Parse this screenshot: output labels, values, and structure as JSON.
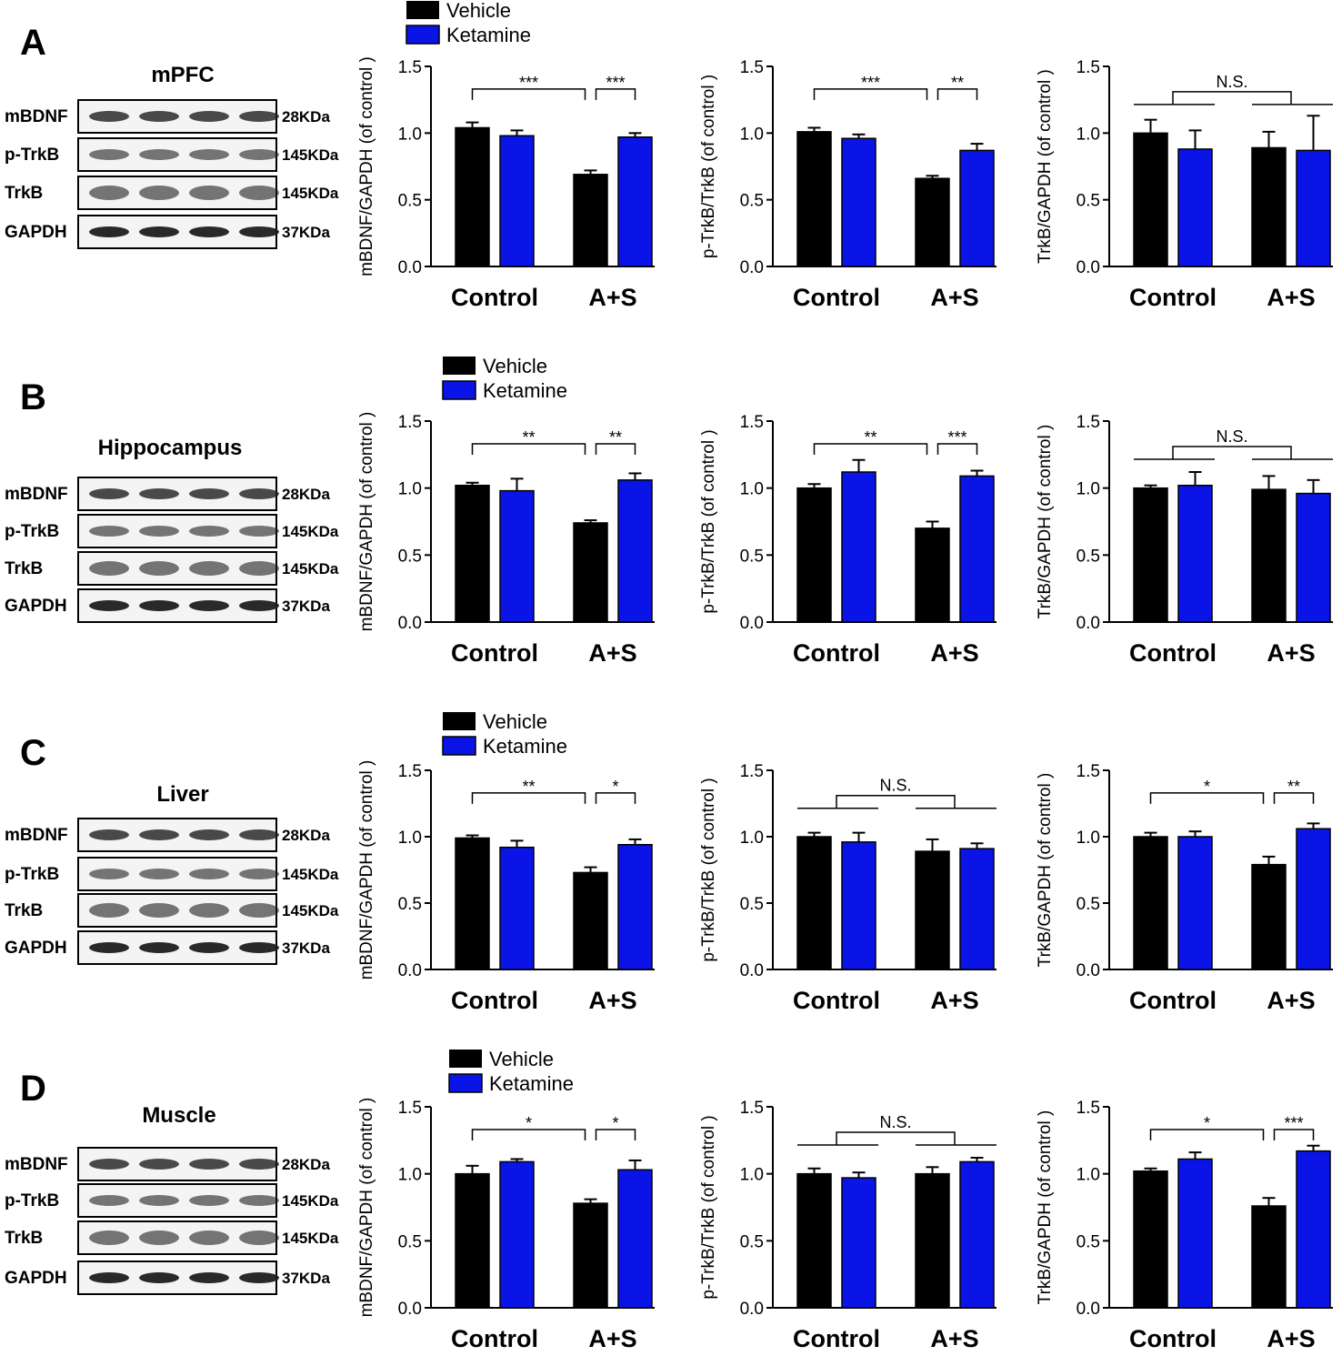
{
  "colors": {
    "vehicle": "#000000",
    "ketamine": "#0a14e6",
    "band": "#1e1e1e"
  },
  "legend": {
    "vehicle": "Vehicle",
    "ketamine": "Ketamine"
  },
  "blot": {
    "bands": [
      "mBDNF",
      "p-TrkB",
      "TrkB",
      "GAPDH"
    ],
    "kda": [
      "28KDa",
      "145KDa",
      "145KDa",
      "37KDa"
    ]
  },
  "panels": [
    {
      "letter": "A",
      "tissue": "mPFC"
    },
    {
      "letter": "B",
      "tissue": "Hippocampus"
    },
    {
      "letter": "C",
      "tissue": "Liver"
    },
    {
      "letter": "D",
      "tissue": "Muscle"
    }
  ],
  "chart_data": [
    {
      "type": "bar",
      "panel": "A",
      "ylabel": "mBDNF/GAPDH (of control )",
      "categories": [
        "Control",
        "A+S"
      ],
      "ylim": [
        0,
        1.5
      ],
      "yticks": [
        "0.0",
        "0.5",
        "1.0",
        "1.5"
      ],
      "series": [
        {
          "name": "Vehicle",
          "values": [
            1.04,
            0.69
          ],
          "errors": [
            0.04,
            0.03
          ]
        },
        {
          "name": "Ketamine",
          "values": [
            0.98,
            0.97
          ],
          "errors": [
            0.04,
            0.03
          ]
        }
      ],
      "significance": [
        {
          "label": "***",
          "from": "Control/Vehicle",
          "to": "A+S/Vehicle"
        },
        {
          "label": "***",
          "from": "A+S/Vehicle",
          "to": "A+S/Ketamine"
        }
      ]
    },
    {
      "type": "bar",
      "panel": "A",
      "ylabel": "p-TrkB/TrkB (of control )",
      "categories": [
        "Control",
        "A+S"
      ],
      "ylim": [
        0,
        1.5
      ],
      "yticks": [
        "0.0",
        "0.5",
        "1.0",
        "1.5"
      ],
      "series": [
        {
          "name": "Vehicle",
          "values": [
            1.01,
            0.66
          ],
          "errors": [
            0.03,
            0.02
          ]
        },
        {
          "name": "Ketamine",
          "values": [
            0.96,
            0.87
          ],
          "errors": [
            0.03,
            0.05
          ]
        }
      ],
      "significance": [
        {
          "label": "***",
          "from": "Control/Vehicle",
          "to": "A+S/Vehicle"
        },
        {
          "label": "**",
          "from": "A+S/Vehicle",
          "to": "A+S/Ketamine"
        }
      ]
    },
    {
      "type": "bar",
      "panel": "A",
      "ylabel": "TrkB/GAPDH (of control )",
      "categories": [
        "Control",
        "A+S"
      ],
      "ylim": [
        0,
        1.5
      ],
      "yticks": [
        "0.0",
        "0.5",
        "1.0",
        "1.5"
      ],
      "series": [
        {
          "name": "Vehicle",
          "values": [
            1.0,
            0.89
          ],
          "errors": [
            0.1,
            0.12
          ]
        },
        {
          "name": "Ketamine",
          "values": [
            0.88,
            0.87
          ],
          "errors": [
            0.14,
            0.26
          ]
        }
      ],
      "significance": [
        {
          "label": "N.S.",
          "type": "group",
          "from": "Control",
          "to": "A+S"
        }
      ]
    },
    {
      "type": "bar",
      "panel": "B",
      "ylabel": "mBDNF/GAPDH (of control )",
      "categories": [
        "Control",
        "A+S"
      ],
      "ylim": [
        0,
        1.5
      ],
      "yticks": [
        "0.0",
        "0.5",
        "1.0",
        "1.5"
      ],
      "series": [
        {
          "name": "Vehicle",
          "values": [
            1.02,
            0.74
          ],
          "errors": [
            0.02,
            0.02
          ]
        },
        {
          "name": "Ketamine",
          "values": [
            0.98,
            1.06
          ],
          "errors": [
            0.09,
            0.05
          ]
        }
      ],
      "significance": [
        {
          "label": "**",
          "from": "Control/Vehicle",
          "to": "A+S/Vehicle"
        },
        {
          "label": "**",
          "from": "A+S/Vehicle",
          "to": "A+S/Ketamine"
        }
      ]
    },
    {
      "type": "bar",
      "panel": "B",
      "ylabel": "p-TrkB/TrkB (of control )",
      "categories": [
        "Control",
        "A+S"
      ],
      "ylim": [
        0,
        1.5
      ],
      "yticks": [
        "0.0",
        "0.5",
        "1.0",
        "1.5"
      ],
      "series": [
        {
          "name": "Vehicle",
          "values": [
            1.0,
            0.7
          ],
          "errors": [
            0.03,
            0.05
          ]
        },
        {
          "name": "Ketamine",
          "values": [
            1.12,
            1.09
          ],
          "errors": [
            0.09,
            0.04
          ]
        }
      ],
      "significance": [
        {
          "label": "**",
          "from": "Control/Vehicle",
          "to": "A+S/Vehicle"
        },
        {
          "label": "***",
          "from": "A+S/Vehicle",
          "to": "A+S/Ketamine"
        }
      ]
    },
    {
      "type": "bar",
      "panel": "B",
      "ylabel": "TrkB/GAPDH (of control )",
      "categories": [
        "Control",
        "A+S"
      ],
      "ylim": [
        0,
        1.5
      ],
      "yticks": [
        "0.0",
        "0.5",
        "1.0",
        "1.5"
      ],
      "series": [
        {
          "name": "Vehicle",
          "values": [
            1.0,
            0.99
          ],
          "errors": [
            0.02,
            0.1
          ]
        },
        {
          "name": "Ketamine",
          "values": [
            1.02,
            0.96
          ],
          "errors": [
            0.1,
            0.1
          ]
        }
      ],
      "significance": [
        {
          "label": "N.S.",
          "type": "group",
          "from": "Control",
          "to": "A+S"
        }
      ]
    },
    {
      "type": "bar",
      "panel": "C",
      "ylabel": "mBDNF/GAPDH (of control )",
      "categories": [
        "Control",
        "A+S"
      ],
      "ylim": [
        0,
        1.5
      ],
      "yticks": [
        "0.0",
        "0.5",
        "1.0",
        "1.5"
      ],
      "series": [
        {
          "name": "Vehicle",
          "values": [
            0.99,
            0.73
          ],
          "errors": [
            0.02,
            0.04
          ]
        },
        {
          "name": "Ketamine",
          "values": [
            0.92,
            0.94
          ],
          "errors": [
            0.05,
            0.04
          ]
        }
      ],
      "significance": [
        {
          "label": "**",
          "from": "Control/Vehicle",
          "to": "A+S/Vehicle"
        },
        {
          "label": "*",
          "from": "A+S/Vehicle",
          "to": "A+S/Ketamine"
        }
      ]
    },
    {
      "type": "bar",
      "panel": "C",
      "ylabel": "p-TrkB/TrkB (of control )",
      "categories": [
        "Control",
        "A+S"
      ],
      "ylim": [
        0,
        1.5
      ],
      "yticks": [
        "0.0",
        "0.5",
        "1.0",
        "1.5"
      ],
      "series": [
        {
          "name": "Vehicle",
          "values": [
            1.0,
            0.89
          ],
          "errors": [
            0.03,
            0.09
          ]
        },
        {
          "name": "Ketamine",
          "values": [
            0.96,
            0.91
          ],
          "errors": [
            0.07,
            0.04
          ]
        }
      ],
      "significance": [
        {
          "label": "N.S.",
          "type": "group",
          "from": "Control",
          "to": "A+S"
        }
      ]
    },
    {
      "type": "bar",
      "panel": "C",
      "ylabel": "TrkB/GAPDH (of control )",
      "categories": [
        "Control",
        "A+S"
      ],
      "ylim": [
        0,
        1.5
      ],
      "yticks": [
        "0.0",
        "0.5",
        "1.0",
        "1.5"
      ],
      "series": [
        {
          "name": "Vehicle",
          "values": [
            1.0,
            0.79
          ],
          "errors": [
            0.03,
            0.06
          ]
        },
        {
          "name": "Ketamine",
          "values": [
            1.0,
            1.06
          ],
          "errors": [
            0.04,
            0.04
          ]
        }
      ],
      "significance": [
        {
          "label": "*",
          "from": "Control/Vehicle",
          "to": "A+S/Vehicle"
        },
        {
          "label": "**",
          "from": "A+S/Vehicle",
          "to": "A+S/Ketamine"
        }
      ]
    },
    {
      "type": "bar",
      "panel": "D",
      "ylabel": "mBDNF/GAPDH (of control )",
      "categories": [
        "Control",
        "A+S"
      ],
      "ylim": [
        0,
        1.5
      ],
      "yticks": [
        "0.0",
        "0.5",
        "1.0",
        "1.5"
      ],
      "series": [
        {
          "name": "Vehicle",
          "values": [
            1.0,
            0.78
          ],
          "errors": [
            0.06,
            0.03
          ]
        },
        {
          "name": "Ketamine",
          "values": [
            1.09,
            1.03
          ],
          "errors": [
            0.02,
            0.07
          ]
        }
      ],
      "significance": [
        {
          "label": "*",
          "from": "Control/Vehicle",
          "to": "A+S/Vehicle"
        },
        {
          "label": "*",
          "from": "A+S/Vehicle",
          "to": "A+S/Ketamine"
        }
      ]
    },
    {
      "type": "bar",
      "panel": "D",
      "ylabel": "p-TrkB/TrkB (of control )",
      "categories": [
        "Control",
        "A+S"
      ],
      "ylim": [
        0,
        1.5
      ],
      "yticks": [
        "0.0",
        "0.5",
        "1.0",
        "1.5"
      ],
      "series": [
        {
          "name": "Vehicle",
          "values": [
            1.0,
            1.0
          ],
          "errors": [
            0.04,
            0.05
          ]
        },
        {
          "name": "Ketamine",
          "values": [
            0.97,
            1.09
          ],
          "errors": [
            0.04,
            0.03
          ]
        }
      ],
      "significance": [
        {
          "label": "N.S.",
          "type": "group",
          "from": "Control",
          "to": "A+S"
        }
      ]
    },
    {
      "type": "bar",
      "panel": "D",
      "ylabel": "TrkB/GAPDH (of control )",
      "categories": [
        "Control",
        "A+S"
      ],
      "ylim": [
        0,
        1.5
      ],
      "yticks": [
        "0.0",
        "0.5",
        "1.0",
        "1.5"
      ],
      "series": [
        {
          "name": "Vehicle",
          "values": [
            1.02,
            0.76
          ],
          "errors": [
            0.02,
            0.06
          ]
        },
        {
          "name": "Ketamine",
          "values": [
            1.11,
            1.17
          ],
          "errors": [
            0.05,
            0.04
          ]
        }
      ],
      "significance": [
        {
          "label": "*",
          "from": "Control/Vehicle",
          "to": "A+S/Vehicle"
        },
        {
          "label": "***",
          "from": "A+S/Vehicle",
          "to": "A+S/Ketamine"
        }
      ]
    }
  ]
}
